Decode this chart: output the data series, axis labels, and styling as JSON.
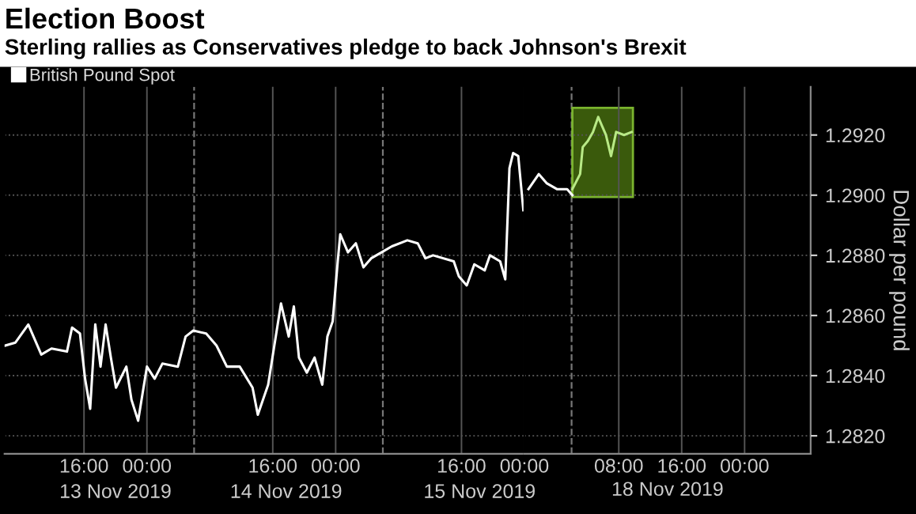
{
  "chart_data": [
    {
      "type": "line",
      "title": "Election Boost",
      "subtitle": "Sterling rallies as Conservatives pledge to back Johnson's Brexit",
      "series": [
        {
          "name": "British Pound Spot",
          "color": "#ffffff",
          "x": [
            "2019-11-13T05:58",
            "2019-11-13T07:17",
            "2019-11-13T08:55",
            "2019-11-13T10:34",
            "2019-11-13T11:52",
            "2019-11-13T13:50",
            "2019-11-13T14:29",
            "2019-11-13T15:29",
            "2019-11-13T16:08",
            "2019-11-13T16:47",
            "2019-11-13T17:26",
            "2019-11-13T18:06",
            "2019-11-13T18:45",
            "2019-11-13T19:25",
            "2019-11-13T20:04",
            "2019-11-13T21:23",
            "2019-11-13T22:02",
            "2019-11-13T22:53",
            "2019-11-14T00:00",
            "2019-11-14T00:59",
            "2019-11-14T01:58",
            "2019-11-14T03:56",
            "2019-11-14T04:55",
            "2019-11-14T05:54",
            "2019-11-14T07:32",
            "2019-11-14T08:51",
            "2019-11-14T10:10",
            "2019-11-14T11:48",
            "2019-11-14T13:26",
            "2019-11-14T14:06",
            "2019-11-14T15:25",
            "2019-11-14T17:03",
            "2019-11-14T18:02",
            "2019-11-14T18:41",
            "2019-11-14T19:20",
            "2019-11-14T20:20",
            "2019-11-14T21:19",
            "2019-11-14T22:18",
            "2019-11-14T22:57",
            "2019-11-14T23:37",
            "2019-11-15T00:16",
            "2019-11-15T00:35",
            "2019-11-15T01:34",
            "2019-11-15T02:34",
            "2019-11-15T03:32",
            "2019-11-15T04:31",
            "2019-11-15T05:50",
            "2019-11-15T07:09",
            "2019-11-15T09:07",
            "2019-11-15T10:26",
            "2019-11-15T11:25",
            "2019-11-15T12:23",
            "2019-11-15T15:01",
            "2019-11-15T15:40",
            "2019-11-15T16:40",
            "2019-11-15T17:38",
            "2019-11-15T18:57",
            "2019-11-15T19:37",
            "2019-11-15T20:55",
            "2019-11-15T21:34",
            "2019-11-15T22:06",
            "2019-11-15T22:34",
            "2019-11-15T23:13",
            "2019-11-15T23:52"
          ],
          "values": [
            1.285,
            1.2851,
            1.2857,
            1.2847,
            1.2849,
            1.2848,
            1.2856,
            1.2854,
            1.2839,
            1.2829,
            1.2857,
            1.2843,
            1.2857,
            1.2846,
            1.2836,
            1.2843,
            1.2832,
            1.2825,
            1.2843,
            1.2839,
            1.2844,
            1.2843,
            1.2853,
            1.2855,
            1.2854,
            1.285,
            1.2843,
            1.2843,
            1.2836,
            1.2827,
            1.2837,
            1.2864,
            1.2853,
            1.2863,
            1.2846,
            1.2841,
            1.2846,
            1.2837,
            1.2853,
            1.2858,
            1.2878,
            1.2887,
            1.2881,
            1.2884,
            1.2876,
            1.2879,
            1.2881,
            1.2883,
            1.2885,
            1.2884,
            1.2879,
            1.288,
            1.2878,
            1.2873,
            1.287,
            1.2877,
            1.2875,
            1.288,
            1.2878,
            1.2872,
            1.2909,
            1.2914,
            1.2913,
            1.2895
          ]
        }
      ],
      "xlim": [
        "2019-11-13T05:54",
        "2019-11-16T00:00"
      ],
      "xticks": [
        {
          "value": "2019-11-13T16:00",
          "label": "16:00"
        },
        {
          "value": "2019-11-14T00:00",
          "label": "00:00"
        },
        {
          "value": "2019-11-14T16:00",
          "label": "16:00"
        },
        {
          "value": "2019-11-15T00:00",
          "label": "00:00"
        },
        {
          "value": "2019-11-15T16:00",
          "label": "16:00"
        },
        {
          "value": "2019-11-16T00:00",
          "label": "00:00"
        }
      ],
      "x2lim": [
        "2019-11-13T05:54",
        "2019-11-16T00:00"
      ],
      "x2ticks": [
        {
          "value": "2019-11-13T20:00",
          "label": "13 Nov 2019"
        },
        {
          "value": "2019-11-14T17:42",
          "label": "14 Nov 2019"
        },
        {
          "value": "2019-11-15T18:18",
          "label": "15 Nov 2019"
        }
      ],
      "ylim": [
        1.2814,
        1.2936
      ],
      "yticks": [
        1.282,
        1.284,
        1.286,
        1.288,
        1.29,
        1.292
      ],
      "tick_labels": "x",
      "ref_lines": [
        {
          "axis": "x",
          "value": "2019-11-14T06:00",
          "line_style": "dashed",
          "color": "#777777"
        },
        {
          "axis": "x",
          "value": "2019-11-15T06:00",
          "line_style": "dashed",
          "color": "#777777"
        }
      ],
      "grid": true,
      "legend": "top left",
      "marker": "none",
      "line_style": "solid"
    },
    {
      "type": "line",
      "ylabel": "Dollar per pound",
      "series": [
        {
          "color": "#ffffff",
          "x": [
            "2019-11-17T20:31",
            "2019-11-17T21:50",
            "2019-11-17T22:49",
            "2019-11-18T00:08",
            "2019-11-18T01:26",
            "2019-11-18T02:06"
          ],
          "values": [
            1.2902,
            1.2907,
            1.2904,
            1.2902,
            1.2902,
            1.29
          ]
        },
        {
          "color": "#b8e986",
          "x": [
            "2019-11-18T02:06",
            "2019-11-18T03:05",
            "2019-11-18T03:25",
            "2019-11-18T04:04",
            "2019-11-18T04:43",
            "2019-11-18T05:23",
            "2019-11-18T06:22",
            "2019-11-18T07:01",
            "2019-11-18T07:40",
            "2019-11-18T08:40",
            "2019-11-18T09:38"
          ],
          "values": [
            1.2902,
            1.2907,
            1.2916,
            1.2918,
            1.2921,
            1.2926,
            1.292,
            1.2913,
            1.2921,
            1.292,
            1.2921
          ]
        }
      ],
      "xlim": [
        "2019-11-17T20:00",
        "2019-11-19T08:24"
      ],
      "xticks": [
        {
          "value": "2019-11-18T08:00",
          "label": "08:00"
        },
        {
          "value": "2019-11-18T16:00",
          "label": "16:00"
        },
        {
          "value": "2019-11-19T00:00",
          "label": "00:00"
        }
      ],
      "annotations": [
        "18 Nov 2019"
      ],
      "ylim": [
        1.2814,
        1.2936
      ],
      "yticks": [
        {
          "value": 1.282,
          "label": "1.2820"
        },
        {
          "value": 1.284,
          "label": "1.2840"
        },
        {
          "value": 1.286,
          "label": "1.2860"
        },
        {
          "value": 1.288,
          "label": "1.2880"
        },
        {
          "value": 1.29,
          "label": "1.2900"
        },
        {
          "value": 1.292,
          "label": "1.2920"
        }
      ],
      "ref_lines": [
        {
          "axis": "x",
          "value": "2019-11-18T02:00",
          "line_style": "dashed",
          "color": "#777777"
        }
      ],
      "bands": [
        {
          "axis": "x",
          "from": "2019-11-18T02:06",
          "to": "2019-11-18T09:48",
          "color": "#3a5a0c"
        }
      ],
      "grid": true,
      "marker": "none",
      "line_style": "solid"
    }
  ]
}
